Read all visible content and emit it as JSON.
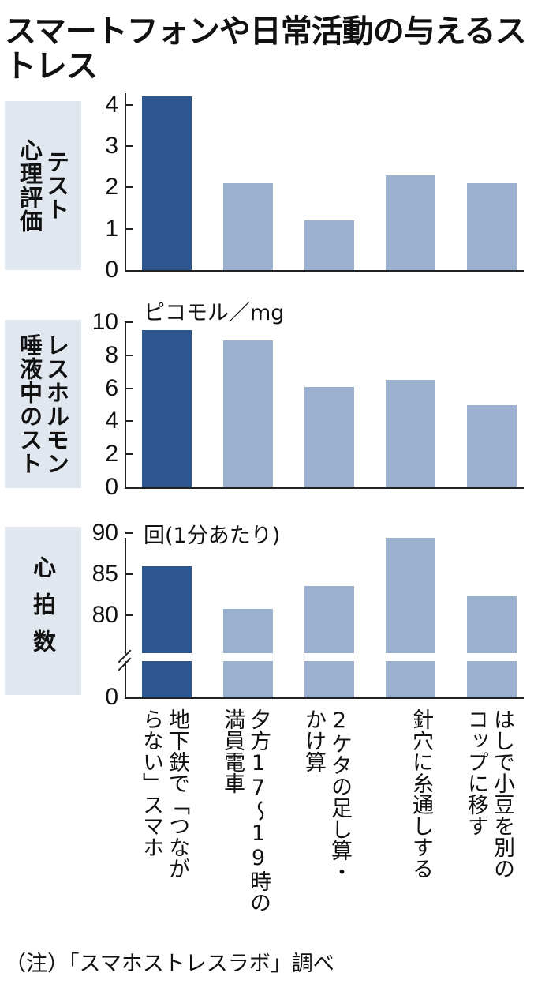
{
  "title": "スマートフォンや日常活動の与えるストレス",
  "note": "（注）「スマホストレスラボ」調べ",
  "colors": {
    "highlight": "#2d5590",
    "normal": "#9bafcf",
    "panel": "#e0e7ef"
  },
  "categories": [
    "地下鉄で「つながらない」スマホ",
    "夕方17～19時の満員電車",
    "2ケタの足し算・かけ算",
    "針穴に糸通しする",
    "はしで小豆を別のコップに移す"
  ],
  "category_columns": [
    [
      "地下鉄で「つなが",
      "らない」スマホ"
    ],
    [
      "夕方17～19時の",
      "満員電車"
    ],
    [
      "2ケタの足し算・",
      "かけ算"
    ],
    [
      "針穴に糸通しする"
    ],
    [
      "はしで小豆を別の",
      "コップに移す"
    ]
  ],
  "panels": [
    {
      "label_columns": [
        "心理評価",
        "テスト"
      ]
    },
    {
      "label_columns": [
        "唾液中のスト",
        "レスホルモン"
      ]
    },
    {
      "label_columns": [
        "心拍数"
      ]
    }
  ],
  "chart_data": [
    {
      "type": "bar",
      "title": "心理評価テスト",
      "categories": [
        "地下鉄で「つながらない」スマホ",
        "夕方17～19時の満員電車",
        "2ケタの足し算・かけ算",
        "針穴に糸通しする",
        "はしで小豆を別のコップに移す"
      ],
      "values": [
        4.2,
        2.1,
        1.2,
        2.3,
        2.1
      ],
      "ylabel": "",
      "yticks": [
        0,
        1,
        2,
        3,
        4
      ],
      "ylim": [
        0,
        4.3
      ],
      "highlight_index": 0,
      "grid": false
    },
    {
      "type": "bar",
      "title": "唾液中のストレスホルモン",
      "categories": [
        "地下鉄で「つながらない」スマホ",
        "夕方17～19時の満員電車",
        "2ケタの足し算・かけ算",
        "針穴に糸通しする",
        "はしで小豆を別のコップに移す"
      ],
      "values": [
        9.5,
        8.9,
        6.1,
        6.5,
        5.0
      ],
      "ylabel": "ピコモル／mg",
      "yticks": [
        0,
        2,
        4,
        6,
        8,
        10
      ],
      "ylim": [
        0,
        10
      ],
      "highlight_index": 0,
      "grid": false
    },
    {
      "type": "bar",
      "title": "心拍数",
      "categories": [
        "地下鉄で「つながらない」スマホ",
        "夕方17～19時の満員電車",
        "2ケタの足し算・かけ算",
        "針穴に糸通しする",
        "はしで小豆を別のコップに移す"
      ],
      "values": [
        86.0,
        80.8,
        83.6,
        89.4,
        82.3
      ],
      "ylabel": "回(1分あたり)",
      "yticks": [
        0,
        80,
        85,
        90
      ],
      "ylim": [
        0,
        90
      ],
      "axis_break": true,
      "highlight_index": 0,
      "grid": false
    }
  ],
  "axis": {
    "c1": {
      "ticks": [
        "4",
        "3",
        "2",
        "1",
        "0"
      ]
    },
    "c2": {
      "unit": "ピコモル／mg",
      "ticks": [
        "10",
        "8",
        "6",
        "4",
        "2",
        "0"
      ]
    },
    "c3": {
      "unit": "回(1分あたり)",
      "ticks": [
        "90",
        "85",
        "80",
        "0"
      ]
    }
  }
}
